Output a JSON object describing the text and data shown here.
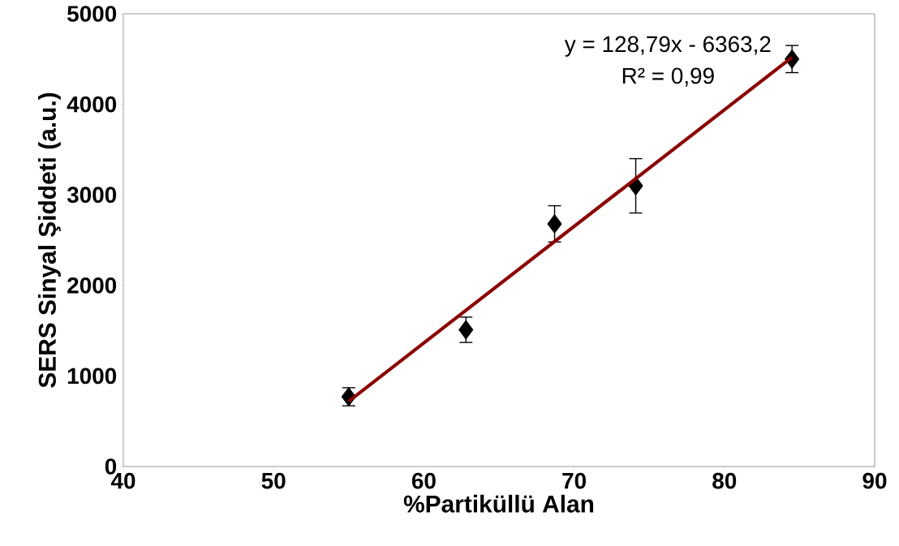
{
  "chart_data": {
    "type": "scatter",
    "xlabel": "%Partiküllü Alan",
    "ylabel": "SERS Sinyal Şiddeti (a.u.)",
    "x": [
      55.0,
      62.8,
      68.7,
      74.1,
      84.5
    ],
    "series": [
      {
        "color": "#000000",
        "marker": "diamond",
        "values": [
          770,
          1510,
          2680,
          3100,
          4500
        ],
        "errors": [
          100,
          140,
          200,
          300,
          150
        ]
      },
      {
        "type": "line",
        "color": "#8b0000",
        "marker": "none",
        "line_style": "solid",
        "x": [
          55.0,
          84.5
        ],
        "values": [
          720,
          4520
        ]
      }
    ],
    "annotations": [
      "y = 128,79x - 6363,2",
      "R² = 0,99"
    ],
    "xlim": [
      40,
      90
    ],
    "xticks": [
      40,
      50,
      60,
      70,
      80,
      90
    ],
    "ylim": [
      0,
      5000
    ],
    "yticks": [
      0,
      1000,
      2000,
      3000,
      4000,
      5000
    ],
    "grid": false
  }
}
